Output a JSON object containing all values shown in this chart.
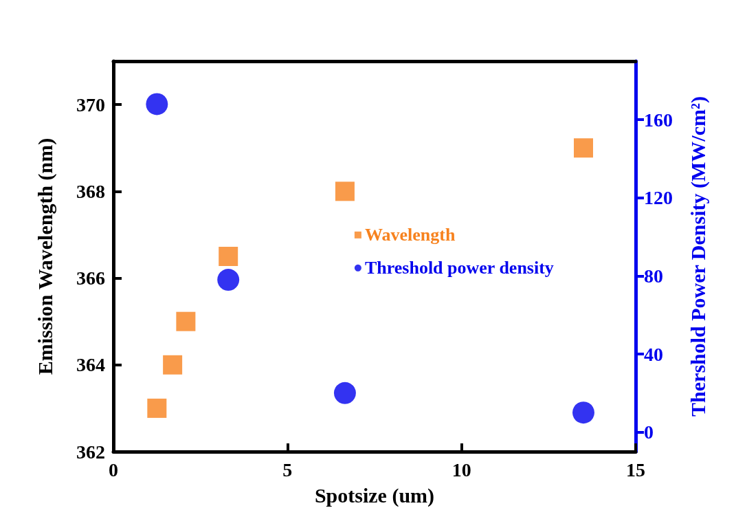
{
  "chart_data": {
    "type": "scatter",
    "xlabel": "Spotsize (um)",
    "ylabel": "Emission Wavelength (nm)",
    "y2label": "Thershold Power Density (MW/cm²)",
    "xlim": [
      0,
      15
    ],
    "xticks": [
      0,
      5,
      10,
      15
    ],
    "ylim": [
      362,
      371
    ],
    "yticks": [
      362,
      364,
      366,
      368,
      370
    ],
    "y2lim": [
      -10,
      190
    ],
    "y2ticks": [
      0,
      40,
      80,
      120,
      160
    ],
    "grid": false,
    "legend": "right",
    "series": [
      {
        "name": "Wavelength",
        "color": "#f7821e",
        "marker": "square",
        "x": [
          1.25,
          1.7,
          2.08,
          3.3,
          6.65,
          13.5
        ],
        "values": [
          363,
          364,
          365,
          366.5,
          368,
          369
        ]
      },
      {
        "name": "Threshold power density",
        "color": "#0000ee",
        "marker": "circle",
        "axis": "y2",
        "x": [
          1.25,
          3.3,
          6.65,
          13.5
        ],
        "values": [
          168,
          78,
          20,
          10
        ]
      }
    ]
  }
}
